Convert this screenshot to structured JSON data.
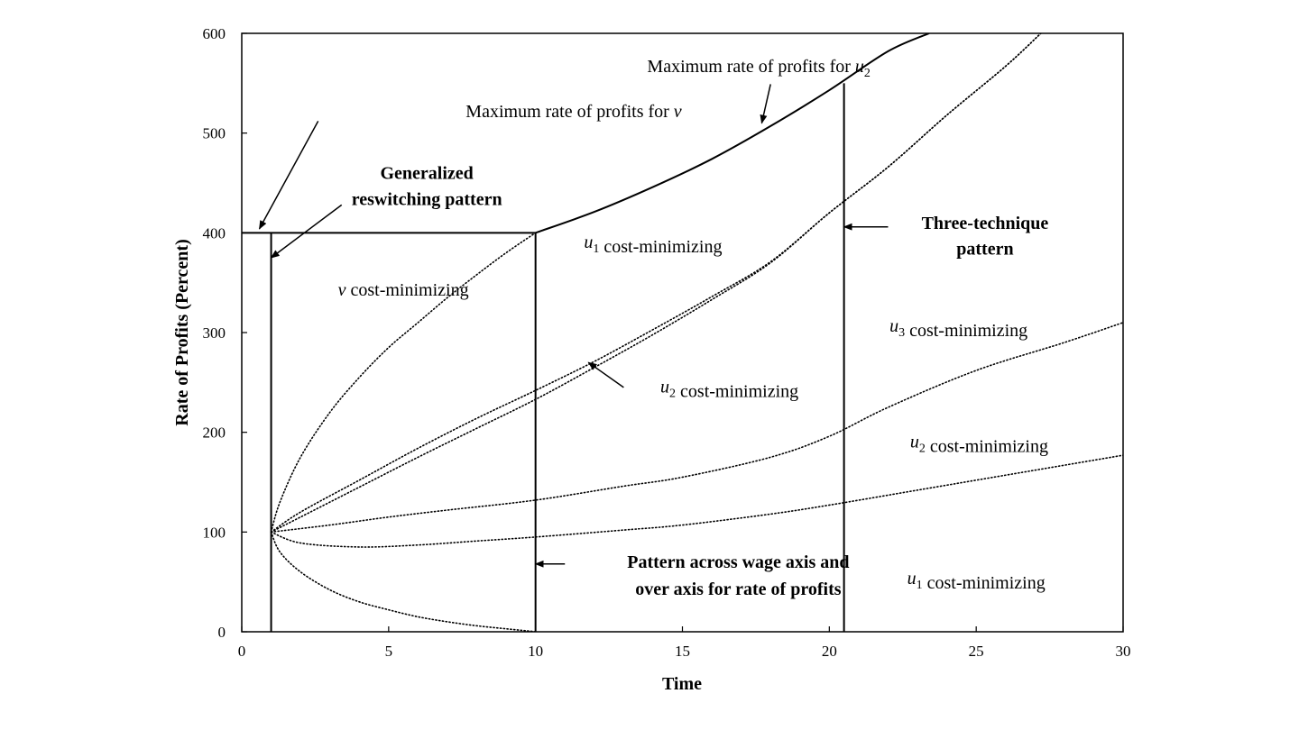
{
  "chart_data": {
    "type": "line",
    "xlabel": "Time",
    "ylabel": "Rate of Profits (Percent)",
    "xlim": [
      0,
      30
    ],
    "ylim": [
      0,
      600
    ],
    "xticks": [
      0,
      5,
      10,
      15,
      20,
      25,
      30
    ],
    "yticks": [
      0,
      100,
      200,
      300,
      400,
      500,
      600
    ],
    "grid": false,
    "legend": "none",
    "series": [
      {
        "style": "solid",
        "points": [
          [
            0,
            400
          ],
          [
            10,
            400
          ],
          [
            12,
            421
          ],
          [
            14,
            446
          ],
          [
            16,
            474
          ],
          [
            18,
            507
          ],
          [
            20,
            543
          ],
          [
            22,
            582
          ],
          [
            23.4,
            600
          ]
        ]
      },
      {
        "style": "dotted",
        "points": [
          [
            1,
            100
          ],
          [
            1.3,
            130
          ],
          [
            2,
            175
          ],
          [
            3,
            220
          ],
          [
            4,
            255
          ],
          [
            5,
            285
          ],
          [
            6,
            310
          ],
          [
            7,
            335
          ],
          [
            8,
            358
          ],
          [
            9,
            380
          ],
          [
            10,
            400
          ]
        ]
      },
      {
        "style": "dotted",
        "points": [
          [
            1,
            100
          ],
          [
            2,
            120
          ],
          [
            4,
            152
          ],
          [
            6,
            184
          ],
          [
            8,
            214
          ],
          [
            10,
            242
          ],
          [
            12,
            271
          ],
          [
            14,
            303
          ],
          [
            16,
            336
          ],
          [
            18,
            371
          ],
          [
            20,
            420
          ],
          [
            22,
            466
          ],
          [
            24,
            518
          ],
          [
            26,
            567
          ],
          [
            27.2,
            600
          ]
        ]
      },
      {
        "style": "dotted",
        "points": [
          [
            1,
            100
          ],
          [
            2,
            115
          ],
          [
            4,
            145
          ],
          [
            6,
            175
          ],
          [
            8,
            204
          ],
          [
            10,
            233
          ],
          [
            12,
            265
          ],
          [
            14,
            298
          ],
          [
            16,
            333
          ],
          [
            18,
            370
          ],
          [
            20,
            420
          ],
          [
            22,
            466
          ],
          [
            24,
            518
          ],
          [
            26,
            567
          ],
          [
            27.2,
            600
          ]
        ]
      },
      {
        "style": "dotted",
        "points": [
          [
            1,
            100
          ],
          [
            3,
            107
          ],
          [
            5,
            115
          ],
          [
            7,
            122
          ],
          [
            10,
            132
          ],
          [
            13,
            146
          ],
          [
            15,
            155
          ],
          [
            18,
            175
          ],
          [
            20,
            196
          ],
          [
            22,
            225
          ],
          [
            25,
            262
          ],
          [
            28,
            290
          ],
          [
            30,
            310
          ]
        ]
      },
      {
        "style": "dotted",
        "points": [
          [
            1,
            100
          ],
          [
            2,
            89
          ],
          [
            4,
            85
          ],
          [
            6,
            87
          ],
          [
            8,
            91
          ],
          [
            10,
            95
          ],
          [
            13,
            102
          ],
          [
            15,
            107
          ],
          [
            18,
            118
          ],
          [
            20,
            127
          ],
          [
            23,
            142
          ],
          [
            26,
            157
          ],
          [
            28,
            167
          ],
          [
            30,
            177
          ]
        ]
      },
      {
        "style": "dotted",
        "points": [
          [
            1,
            100
          ],
          [
            1.3,
            80
          ],
          [
            2,
            60
          ],
          [
            3,
            42
          ],
          [
            4,
            30
          ],
          [
            5,
            22
          ],
          [
            6,
            15
          ],
          [
            7,
            10
          ],
          [
            8,
            6
          ],
          [
            9,
            3
          ],
          [
            10,
            0
          ]
        ]
      }
    ],
    "vlines": [
      {
        "x": 1,
        "y0": 0,
        "y1": 400
      },
      {
        "x": 10,
        "y0": 0,
        "y1": 400
      },
      {
        "x": 20.5,
        "y0": 0,
        "y1": 550
      }
    ],
    "annotations": [
      {
        "id": "max-u2",
        "parts": [
          {
            "t": "Maximum rate of profits for "
          },
          {
            "t": "u",
            "it": true
          },
          {
            "t": "2",
            "sub": true
          }
        ],
        "x": 17.6,
        "y": 561,
        "anchor": "middle",
        "bold": false
      },
      {
        "id": "max-v",
        "parts": [
          {
            "t": "Maximum rate of profits for "
          },
          {
            "t": "v",
            "it": true
          }
        ],
        "x": 11.3,
        "y": 516,
        "anchor": "middle",
        "bold": false
      },
      {
        "id": "gen-1",
        "parts": [
          {
            "t": "Generalized"
          }
        ],
        "x": 6.3,
        "y": 454,
        "anchor": "middle",
        "bold": true
      },
      {
        "id": "gen-2",
        "parts": [
          {
            "t": "reswitching pattern"
          }
        ],
        "x": 6.3,
        "y": 428,
        "anchor": "middle",
        "bold": true
      },
      {
        "id": "v-cost",
        "parts": [
          {
            "t": "v",
            "it": true
          },
          {
            "t": " cost-minimizing"
          }
        ],
        "x": 5.5,
        "y": 337,
        "anchor": "middle",
        "bold": false
      },
      {
        "id": "u1-cost-top",
        "parts": [
          {
            "t": "u",
            "it": true
          },
          {
            "t": "1",
            "sub": true
          },
          {
            "t": " cost-minimizing"
          }
        ],
        "x": 14.0,
        "y": 385,
        "anchor": "middle",
        "bold": false
      },
      {
        "id": "three-1",
        "parts": [
          {
            "t": "Three-technique"
          }
        ],
        "x": 25.3,
        "y": 404,
        "anchor": "middle",
        "bold": true
      },
      {
        "id": "three-2",
        "parts": [
          {
            "t": "pattern"
          }
        ],
        "x": 25.3,
        "y": 378,
        "anchor": "middle",
        "bold": true
      },
      {
        "id": "u3-cost",
        "parts": [
          {
            "t": "u",
            "it": true
          },
          {
            "t": "3",
            "sub": true
          },
          {
            "t": " cost-minimizing"
          }
        ],
        "x": 24.4,
        "y": 301,
        "anchor": "middle",
        "bold": false
      },
      {
        "id": "u2-cost-mid",
        "parts": [
          {
            "t": "u",
            "it": true
          },
          {
            "t": "2",
            "sub": true
          },
          {
            "t": " cost-minimizing"
          }
        ],
        "x": 16.6,
        "y": 240,
        "anchor": "middle",
        "bold": false
      },
      {
        "id": "u2-cost-right",
        "parts": [
          {
            "t": "u",
            "it": true
          },
          {
            "t": "2",
            "sub": true
          },
          {
            "t": " cost-minimizing"
          }
        ],
        "x": 25.1,
        "y": 185,
        "anchor": "middle",
        "bold": false
      },
      {
        "id": "pattern-1",
        "parts": [
          {
            "t": "Pattern across wage axis and"
          }
        ],
        "x": 16.9,
        "y": 64,
        "anchor": "middle",
        "bold": true
      },
      {
        "id": "pattern-2",
        "parts": [
          {
            "t": "over axis for rate of profits"
          }
        ],
        "x": 16.9,
        "y": 37,
        "anchor": "middle",
        "bold": true
      },
      {
        "id": "u1-cost-bottom",
        "parts": [
          {
            "t": "u",
            "it": true
          },
          {
            "t": "1",
            "sub": true
          },
          {
            "t": " cost-minimizing"
          }
        ],
        "x": 25.0,
        "y": 48,
        "anchor": "middle",
        "bold": false
      }
    ],
    "arrows": [
      {
        "from": [
          18.0,
          549
        ],
        "to": [
          17.7,
          510
        ]
      },
      {
        "from": [
          2.6,
          512
        ],
        "to": [
          0.6,
          404
        ]
      },
      {
        "from": [
          3.4,
          428
        ],
        "to": [
          1.0,
          375
        ]
      },
      {
        "from": [
          22.0,
          406
        ],
        "to": [
          20.5,
          406
        ]
      },
      {
        "from": [
          13.0,
          245
        ],
        "to": [
          11.8,
          270
        ]
      },
      {
        "from": [
          11.0,
          68
        ],
        "to": [
          10.0,
          68
        ]
      }
    ]
  }
}
